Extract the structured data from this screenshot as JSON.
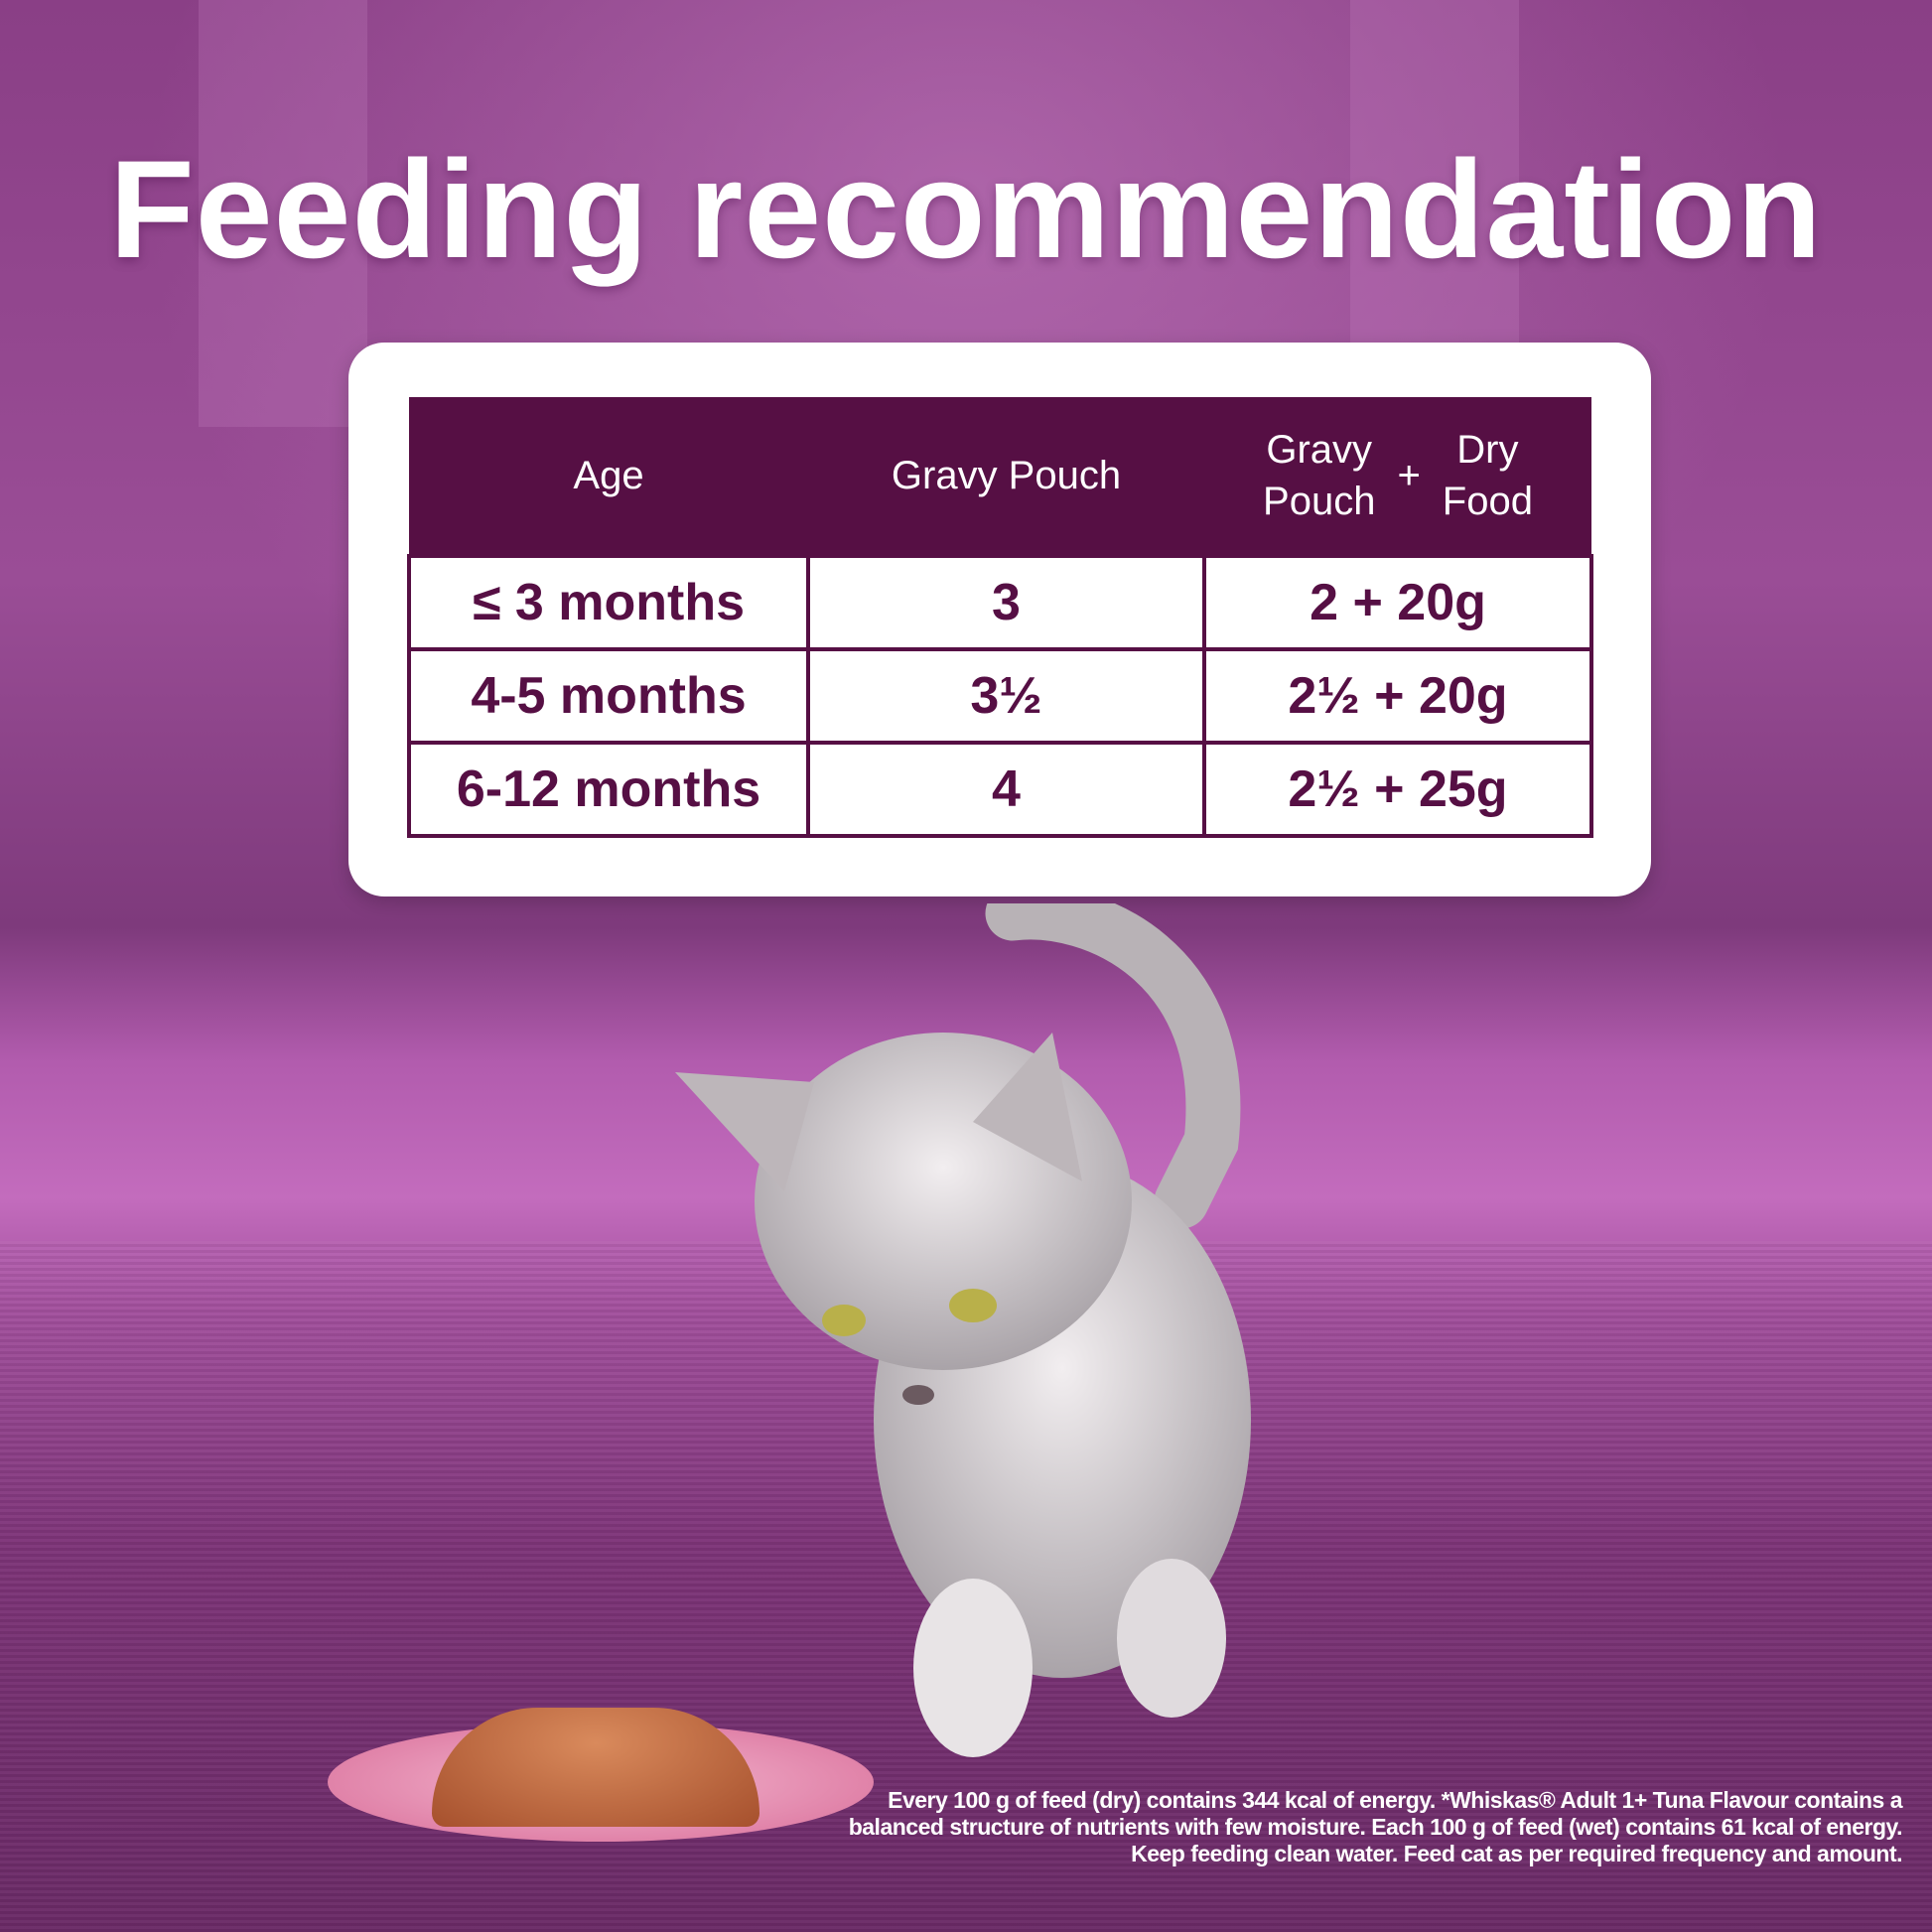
{
  "title": "Feeding recommendation",
  "table": {
    "headers": {
      "age": "Age",
      "gravy_pouch": "Gravy Pouch",
      "combo_left_1": "Gravy",
      "combo_left_2": "Pouch",
      "combo_plus": "+",
      "combo_right_1": "Dry",
      "combo_right_2": "Food"
    },
    "rows": [
      {
        "age": "≤ 3 months",
        "gravy_pouch": "3",
        "combo": "2 + 20g"
      },
      {
        "age": "4-5 months",
        "gravy_pouch": "3½",
        "combo": "2½ + 20g"
      },
      {
        "age": "6-12 months",
        "gravy_pouch": "4",
        "combo": "2½ + 25g"
      }
    ]
  },
  "footnote": "Every 100 g of feed (dry) contains 344 kcal of energy. *Whiskas® Adult 1+ Tuna Flavour contains a balanced structure of nutrients with few moisture. Each 100 g of feed (wet) contains 61 kcal of energy. Keep feeding clean water. Feed cat as per required frequency and amount.",
  "colors": {
    "brand_purple": "#560f44",
    "background": "#9a4d96"
  }
}
